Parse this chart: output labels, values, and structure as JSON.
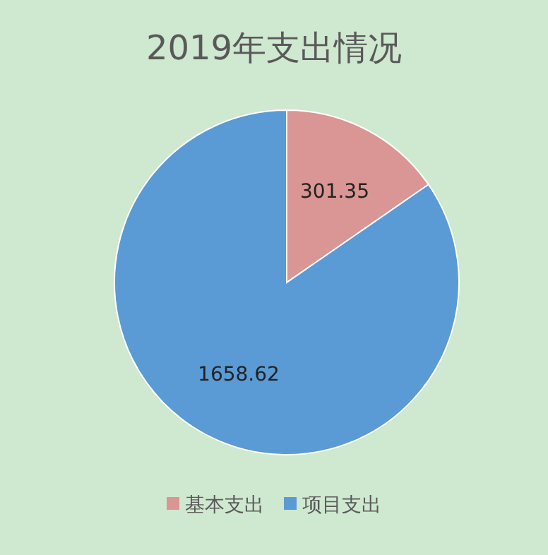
{
  "chart_data": {
    "type": "pie",
    "title": "2019年支出情况",
    "categories": [
      "基本支出",
      "项目支出"
    ],
    "values": [
      301.35,
      1658.62
    ],
    "colors": [
      "#d99694",
      "#5b9bd5"
    ],
    "data_labels": true,
    "legend": "bottom"
  }
}
